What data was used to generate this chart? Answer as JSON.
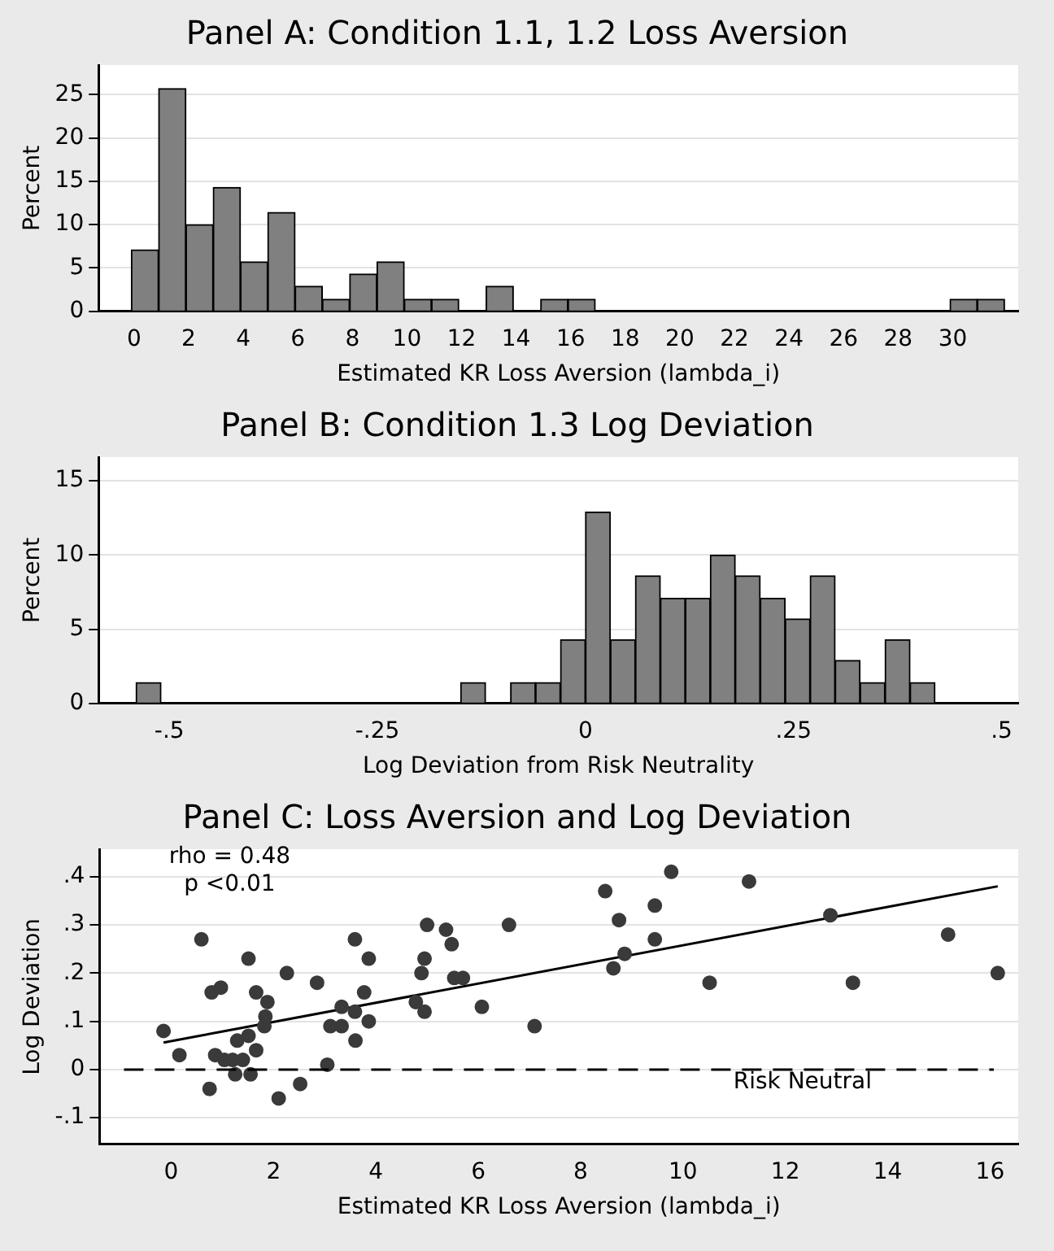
{
  "chart_data": [
    {
      "type": "histogram",
      "title": "Panel A: Condition 1.1, 1.2 Loss Aversion",
      "xlabel": "Estimated KR Loss Aversion (lambda_i)",
      "ylabel": "Percent",
      "color": "#808080",
      "bins": [
        -0.1,
        0.9,
        1.9,
        2.9,
        3.9,
        4.9,
        5.9,
        6.9,
        7.9,
        8.9,
        9.9,
        10.9,
        11.9,
        12.9,
        13.9,
        14.9,
        15.9,
        16.9,
        17.9,
        18.9,
        19.9,
        20.9,
        21.9,
        22.9,
        23.9,
        24.9,
        25.9,
        26.9,
        27.9,
        28.9,
        29.9,
        30.9,
        31.9
      ],
      "values": [
        7.1,
        25.7,
        10,
        14.3,
        5.7,
        11.4,
        2.9,
        1.4,
        4.3,
        5.7,
        1.4,
        1.4,
        0,
        2.9,
        0,
        1.4,
        1.4,
        0,
        0,
        0,
        0,
        0,
        0,
        0,
        0,
        0,
        0,
        0,
        0,
        0,
        1.4,
        1.4
      ],
      "xlim": [
        -1.3,
        32.4
      ],
      "xticks": [
        0,
        2,
        4,
        6,
        8,
        10,
        12,
        14,
        16,
        18,
        20,
        22,
        24,
        26,
        28,
        30
      ],
      "ylim": [
        0,
        28.4
      ],
      "yticks": [
        0,
        5,
        10,
        15,
        20,
        25
      ],
      "grid": "y",
      "legend": false
    },
    {
      "type": "histogram",
      "title": "Panel B: Condition 1.3 Log Deviation",
      "xlabel": "Log Deviation from Risk Neutrality",
      "ylabel": "Percent",
      "color": "#808080",
      "bins": [
        -0.54,
        -0.51,
        -0.48,
        -0.45,
        -0.42,
        -0.39,
        -0.36,
        -0.33,
        -0.3,
        -0.27,
        -0.24,
        -0.21,
        -0.18,
        -0.15,
        -0.12,
        -0.09,
        -0.06,
        -0.03,
        0,
        0.03,
        0.06,
        0.09,
        0.12,
        0.15,
        0.18,
        0.21,
        0.24,
        0.27,
        0.3,
        0.33,
        0.36,
        0.39,
        0.42
      ],
      "values": [
        1.4,
        0,
        0,
        0,
        0,
        0,
        0,
        0,
        0,
        0,
        0,
        0,
        0,
        1.4,
        0,
        1.4,
        1.4,
        4.3,
        12.9,
        4.3,
        8.6,
        7.1,
        7.1,
        10,
        8.6,
        7.1,
        5.7,
        8.6,
        2.9,
        1.4,
        4.3,
        1.4
      ],
      "xlim": [
        -0.585,
        0.52
      ],
      "xticks": [
        {
          "value": -0.5,
          "label": "-.5"
        },
        {
          "value": -0.25,
          "label": "-.25"
        },
        0,
        {
          "value": 0.25,
          "label": ".25"
        },
        {
          "value": 0.5,
          "label": ".5"
        }
      ],
      "ylim": [
        0,
        16.6
      ],
      "yticks": [
        0,
        5,
        10,
        15
      ],
      "grid": "y",
      "legend": false
    },
    {
      "type": "scatter",
      "title": "Panel C: Loss Aversion and Log Deviation",
      "xlabel": "Estimated KR Loss Aversion (lambda_i)",
      "ylabel": "Log Deviation",
      "series": [
        {
          "type": "scatter",
          "color": "#3a3a3a",
          "marker": "circle",
          "x": [
            -0.15,
            0.16,
            0.59,
            0.75,
            0.79,
            0.97,
            0.86,
            1.04,
            1.2,
            1.25,
            1.29,
            1.4,
            1.51,
            1.51,
            1.55,
            1.66,
            1.66,
            1.82,
            1.84,
            1.88,
            2.1,
            2.26,
            2.52,
            2.85,
            3.05,
            3.11,
            3.33,
            3.33,
            3.59,
            3.59,
            3.6,
            3.77,
            3.86,
            3.86,
            4.78,
            4.89,
            4.95,
            4.95,
            5,
            5.37,
            5.48,
            5.53,
            5.7,
            6.07,
            6.6,
            7.1,
            8.48,
            8.64,
            8.75,
            8.86,
            9.45,
            9.45,
            9.77,
            10.52,
            11.29,
            12.88,
            13.32,
            15.18,
            16.15
          ],
          "values": [
            0.08,
            0.03,
            0.27,
            -0.04,
            0.16,
            0.17,
            0.03,
            0.02,
            0.02,
            -0.01,
            0.06,
            0.02,
            0.07,
            0.23,
            -0.01,
            0.16,
            0.04,
            0.09,
            0.11,
            0.14,
            -0.06,
            0.2,
            -0.03,
            0.18,
            0.01,
            0.09,
            0.13,
            0.09,
            0.27,
            0.12,
            0.06,
            0.16,
            0.1,
            0.23,
            0.14,
            0.2,
            0.23,
            0.12,
            0.3,
            0.29,
            0.26,
            0.19,
            0.19,
            0.13,
            0.3,
            0.09,
            0.37,
            0.21,
            0.31,
            0.24,
            0.27,
            0.34,
            0.41,
            0.18,
            0.39,
            0.32,
            0.18,
            0.28,
            0.2
          ]
        },
        {
          "type": "line",
          "color": "#000000",
          "marker": "none",
          "x": [
            -0.15,
            16.15
          ],
          "values": [
            0.056,
            0.38
          ]
        }
      ],
      "ref_lines": [
        {
          "axis": "y",
          "value": 0,
          "label": "Risk Neutral",
          "line_style": "dashed",
          "color": "#000000"
        }
      ],
      "annotations": [
        "rho = 0.48",
        "p <0.01"
      ],
      "xlim": [
        -1.4,
        16.55
      ],
      "xticks": [
        0,
        2,
        4,
        6,
        8,
        10,
        12,
        14,
        16
      ],
      "ylim": [
        -0.155,
        0.457
      ],
      "yticks": [
        {
          "value": -0.1,
          "label": "-.1"
        },
        0,
        {
          "value": 0.1,
          "label": ".1"
        },
        {
          "value": 0.2,
          "label": ".2"
        },
        {
          "value": 0.3,
          "label": ".3"
        },
        {
          "value": 0.4,
          "label": ".4"
        }
      ],
      "grid": "y",
      "legend": false
    }
  ]
}
